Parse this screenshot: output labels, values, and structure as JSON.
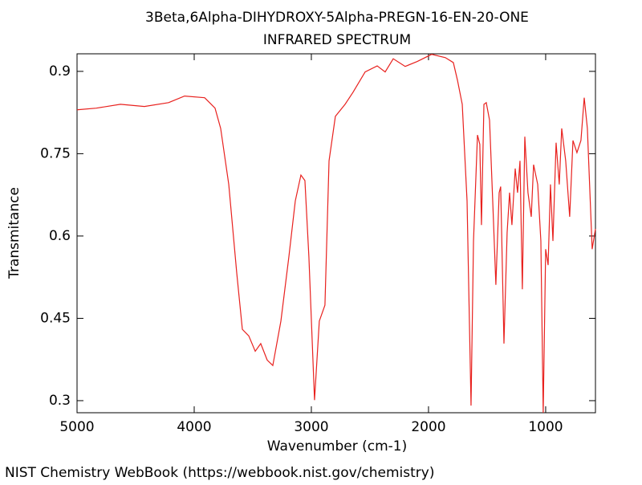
{
  "chart_data": {
    "type": "line",
    "title": "3Beta,6Alpha-DIHYDROXY-5Alpha-PREGN-16-EN-20-ONE",
    "subtitle": "INFRARED SPECTRUM",
    "x_label": "Wavenumber (cm-1)",
    "y_label": "Transmitance",
    "footer": "NIST Chemistry WebBook (https://webbook.nist.gov/chemistry)",
    "color": "#e8211e",
    "xlim": [
      5000,
      575
    ],
    "ylim": [
      0.278,
      0.932
    ],
    "xticks": [
      5000,
      4000,
      3000,
      2000,
      1000
    ],
    "yticks": [
      0.3,
      0.45,
      0.6,
      0.75,
      0.9
    ],
    "x": [
      5000,
      4836,
      4630,
      4425,
      4219,
      4082,
      3911,
      3822,
      3774,
      3705,
      3637,
      3589,
      3534,
      3479,
      3432,
      3377,
      3329,
      3260,
      3192,
      3137,
      3089,
      3055,
      3021,
      2973,
      2932,
      2884,
      2849,
      2795,
      2712,
      2644,
      2541,
      2438,
      2370,
      2301,
      2199,
      2096,
      1973,
      1856,
      1788,
      1753,
      1712,
      1671,
      1637,
      1616,
      1582,
      1562,
      1548,
      1527,
      1507,
      1479,
      1452,
      1425,
      1397,
      1384,
      1356,
      1329,
      1308,
      1288,
      1260,
      1240,
      1219,
      1199,
      1178,
      1151,
      1123,
      1103,
      1068,
      1041,
      1021,
      1000,
      979,
      959,
      938,
      911,
      884,
      863,
      829,
      795,
      767,
      733,
      699,
      671,
      644,
      603,
      575
    ],
    "values": [
      0.83,
      0.833,
      0.84,
      0.836,
      0.843,
      0.855,
      0.852,
      0.833,
      0.796,
      0.694,
      0.533,
      0.43,
      0.418,
      0.39,
      0.404,
      0.374,
      0.364,
      0.445,
      0.562,
      0.664,
      0.711,
      0.701,
      0.562,
      0.301,
      0.445,
      0.474,
      0.737,
      0.818,
      0.84,
      0.862,
      0.899,
      0.91,
      0.899,
      0.923,
      0.909,
      0.918,
      0.931,
      0.925,
      0.916,
      0.884,
      0.84,
      0.664,
      0.291,
      0.591,
      0.784,
      0.767,
      0.62,
      0.84,
      0.843,
      0.811,
      0.664,
      0.511,
      0.679,
      0.69,
      0.404,
      0.606,
      0.679,
      0.62,
      0.723,
      0.679,
      0.737,
      0.503,
      0.781,
      0.679,
      0.635,
      0.73,
      0.694,
      0.591,
      0.278,
      0.576,
      0.547,
      0.694,
      0.591,
      0.77,
      0.694,
      0.796,
      0.737,
      0.635,
      0.774,
      0.752,
      0.774,
      0.852,
      0.796,
      0.576,
      0.613
    ]
  }
}
